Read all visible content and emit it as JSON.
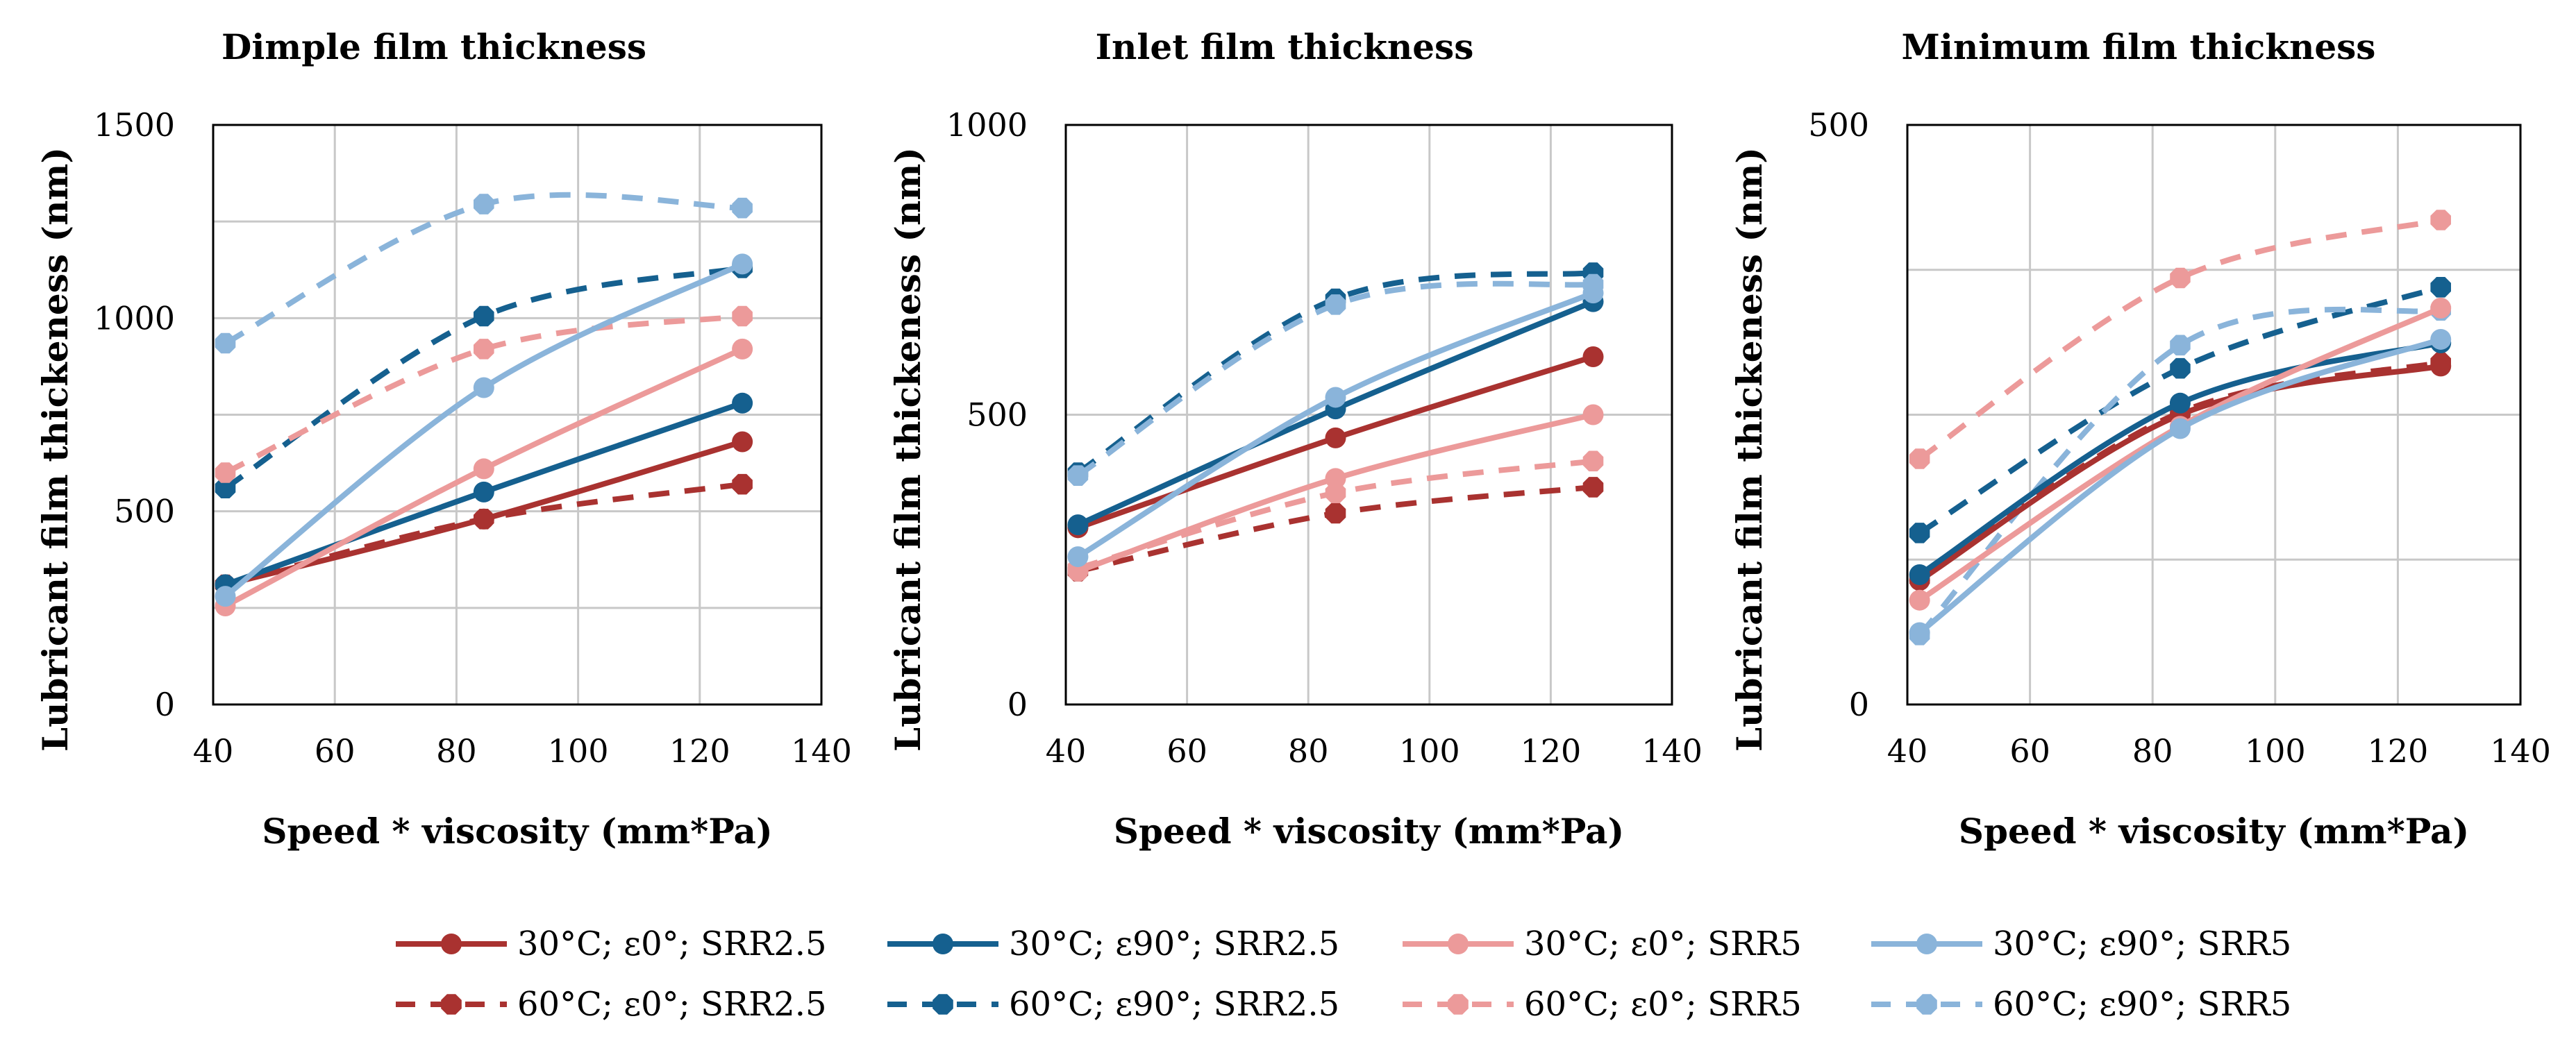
{
  "chart_data": [
    {
      "type": "line",
      "title": "Dimple film thickness",
      "xlabel": "Speed * viscosity (mm*Pa)",
      "ylabel": "Lubricant film thickeness (nm)",
      "xlim": [
        40,
        140
      ],
      "ylim": [
        0,
        1500
      ],
      "xticks": [
        40,
        60,
        80,
        100,
        120,
        140
      ],
      "yticks": [
        0,
        500,
        1000,
        1500
      ],
      "x": [
        42,
        84.5,
        127
      ],
      "series": [
        {
          "name": "30°C; ε0°; SRR2.5",
          "values": [
            310,
            480,
            680
          ]
        },
        {
          "name": "30°C; ε90°; SRR2.5",
          "values": [
            310,
            550,
            780
          ]
        },
        {
          "name": "30°C; ε0°; SRR5",
          "values": [
            255,
            610,
            920
          ]
        },
        {
          "name": "30°C; ε90°; SRR5",
          "values": [
            280,
            820,
            1140
          ]
        },
        {
          "name": "60°C; ε0°; SRR2.5",
          "values": [
            310,
            480,
            570
          ]
        },
        {
          "name": "60°C; ε90°; SRR2.5",
          "values": [
            560,
            1005,
            1130
          ]
        },
        {
          "name": "60°C; ε0°; SRR5",
          "values": [
            600,
            920,
            1005
          ]
        },
        {
          "name": "60°C; ε90°; SRR5",
          "values": [
            935,
            1295,
            1285
          ]
        }
      ]
    },
    {
      "type": "line",
      "title": "Inlet film thickness",
      "xlabel": "Speed * viscosity (mm*Pa)",
      "ylabel": "Lubricant film thickeness (nm)",
      "xlim": [
        40,
        140
      ],
      "ylim": [
        0,
        1000
      ],
      "xticks": [
        40,
        60,
        80,
        100,
        120,
        140
      ],
      "yticks": [
        0,
        500,
        1000
      ],
      "x": [
        42,
        84.5,
        127
      ],
      "series": [
        {
          "name": "30°C; ε0°; SRR2.5",
          "values": [
            305,
            460,
            600
          ]
        },
        {
          "name": "30°C; ε90°; SRR2.5",
          "values": [
            310,
            510,
            695
          ]
        },
        {
          "name": "30°C; ε0°; SRR5",
          "values": [
            230,
            390,
            500
          ]
        },
        {
          "name": "30°C; ε90°; SRR5",
          "values": [
            255,
            530,
            710
          ]
        },
        {
          "name": "60°C; ε0°; SRR2.5",
          "values": [
            230,
            330,
            375
          ]
        },
        {
          "name": "60°C; ε90°; SRR2.5",
          "values": [
            400,
            700,
            745
          ]
        },
        {
          "name": "60°C; ε0°; SRR5",
          "values": [
            235,
            365,
            420
          ]
        },
        {
          "name": "60°C; ε90°; SRR5",
          "values": [
            395,
            690,
            725
          ]
        }
      ]
    },
    {
      "type": "line",
      "title": "Minimum film thickness",
      "xlabel": "Speed * viscosity (mm*Pa)",
      "ylabel": "Lubricant film thickeness (nm)",
      "xlim": [
        40,
        140
      ],
      "ylim": [
        0,
        500
      ],
      "xticks": [
        40,
        60,
        80,
        100,
        120,
        140
      ],
      "yticks": [
        0,
        500
      ],
      "x": [
        42,
        84.5,
        127
      ],
      "series": [
        {
          "name": "30°C; ε0°; SRR2.5",
          "values": [
            107,
            250,
            292
          ]
        },
        {
          "name": "30°C; ε90°; SRR2.5",
          "values": [
            112,
            260,
            312
          ]
        },
        {
          "name": "30°C; ε0°; SRR5",
          "values": [
            90,
            240,
            342
          ]
        },
        {
          "name": "30°C; ε90°; SRR5",
          "values": [
            62,
            238,
            315
          ]
        },
        {
          "name": "60°C; ε0°; SRR2.5",
          "values": [
            108,
            252,
            295
          ]
        },
        {
          "name": "60°C; ε90°; SRR2.5",
          "values": [
            148,
            290,
            360
          ]
        },
        {
          "name": "60°C; ε0°; SRR5",
          "values": [
            212,
            368,
            418
          ]
        },
        {
          "name": "60°C; ε90°; SRR5",
          "values": [
            60,
            310,
            340
          ]
        }
      ]
    }
  ],
  "legend": {
    "placement": "bottom",
    "items": [
      {
        "label": "30°C; ε0°; SRR2.5",
        "color": "#a93230",
        "dashed": false,
        "marker": "circle"
      },
      {
        "label": "30°C; ε90°; SRR2.5",
        "color": "#15608f",
        "dashed": false,
        "marker": "circle"
      },
      {
        "label": "30°C; ε0°; SRR5",
        "color": "#ec9a9a",
        "dashed": false,
        "marker": "circle"
      },
      {
        "label": "30°C; ε90°; SRR5",
        "color": "#8ab4da",
        "dashed": false,
        "marker": "circle"
      },
      {
        "label": "60°C; ε0°; SRR2.5",
        "color": "#a93230",
        "dashed": true,
        "marker": "octagon"
      },
      {
        "label": "60°C; ε90°; SRR2.5",
        "color": "#15608f",
        "dashed": true,
        "marker": "octagon"
      },
      {
        "label": "60°C; ε0°; SRR5",
        "color": "#ec9a9a",
        "dashed": true,
        "marker": "octagon"
      },
      {
        "label": "60°C; ε90°; SRR5",
        "color": "#8ab4da",
        "dashed": true,
        "marker": "octagon"
      }
    ]
  }
}
